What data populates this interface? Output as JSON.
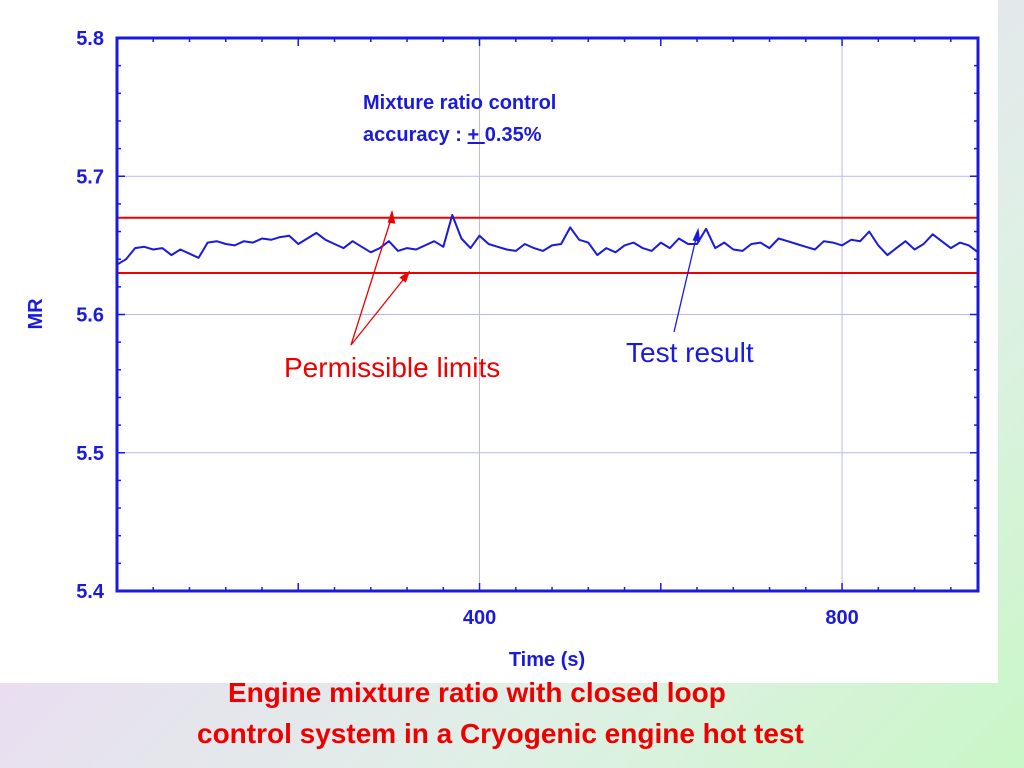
{
  "chart_data": {
    "type": "line",
    "xlabel": "Time (s)",
    "ylabel": "MR",
    "xlim": [
      0,
      950
    ],
    "ylim": [
      5.4,
      5.8
    ],
    "xticks": [
      400,
      800
    ],
    "yticks": [
      5.4,
      5.5,
      5.6,
      5.7,
      5.8
    ],
    "xtick_labels": [
      "400",
      "800"
    ],
    "ytick_labels": [
      "5.4",
      "5.5",
      "5.6",
      "5.7",
      "5.8"
    ],
    "grid": true,
    "limits": {
      "upper": 5.67,
      "lower": 5.63,
      "color": "#ee0000"
    },
    "series": [
      {
        "color": "#1a1adc",
        "x": [
          0,
          10,
          20,
          30,
          40,
          50,
          60,
          70,
          80,
          90,
          100,
          110,
          120,
          130,
          140,
          150,
          160,
          170,
          180,
          190,
          200,
          210,
          220,
          230,
          240,
          250,
          260,
          270,
          280,
          290,
          300,
          310,
          320,
          330,
          340,
          350,
          360,
          370,
          380,
          390,
          400,
          410,
          420,
          430,
          440,
          450,
          460,
          470,
          480,
          490,
          500,
          510,
          520,
          530,
          540,
          550,
          560,
          570,
          580,
          590,
          600,
          610,
          620,
          630,
          640,
          650,
          660,
          670,
          680,
          690,
          700,
          710,
          720,
          730,
          740,
          750,
          760,
          770,
          780,
          790,
          800,
          810,
          820,
          830,
          840,
          850,
          860,
          870,
          880,
          890,
          900,
          910,
          920,
          930,
          940,
          950
        ],
        "y": [
          5.636,
          5.64,
          5.648,
          5.649,
          5.647,
          5.648,
          5.643,
          5.647,
          5.644,
          5.641,
          5.652,
          5.653,
          5.651,
          5.65,
          5.653,
          5.652,
          5.655,
          5.654,
          5.656,
          5.657,
          5.651,
          5.655,
          5.659,
          5.654,
          5.651,
          5.648,
          5.653,
          5.649,
          5.645,
          5.648,
          5.653,
          5.646,
          5.648,
          5.647,
          5.65,
          5.653,
          5.649,
          5.672,
          5.655,
          5.648,
          5.657,
          5.651,
          5.649,
          5.647,
          5.646,
          5.651,
          5.648,
          5.646,
          5.65,
          5.651,
          5.663,
          5.654,
          5.652,
          5.643,
          5.648,
          5.645,
          5.65,
          5.652,
          5.648,
          5.646,
          5.652,
          5.648,
          5.655,
          5.651,
          5.651,
          5.662,
          5.648,
          5.652,
          5.647,
          5.646,
          5.651,
          5.652,
          5.648,
          5.655,
          5.653,
          5.651,
          5.649,
          5.647,
          5.653,
          5.652,
          5.65,
          5.654,
          5.653,
          5.66,
          5.65,
          5.643,
          5.648,
          5.653,
          5.647,
          5.651,
          5.658,
          5.653,
          5.648,
          5.652,
          5.65,
          5.645
        ]
      }
    ]
  },
  "annotations": {
    "accuracy_line1": "Mixture ratio control",
    "accuracy_prefix": "accuracy : ",
    "accuracy_symbol": "+ ",
    "accuracy_value": "0.35%",
    "permissible_limits": "Permissible limits",
    "test_result": "Test result"
  },
  "caption": {
    "line1": "Engine mixture ratio  with closed loop",
    "line2": "control system in a Cryogenic engine hot test"
  },
  "colors": {
    "axis_blue": "#1a1adc",
    "annotation_red": "#ee0000",
    "grid": "#b8b8f0"
  }
}
